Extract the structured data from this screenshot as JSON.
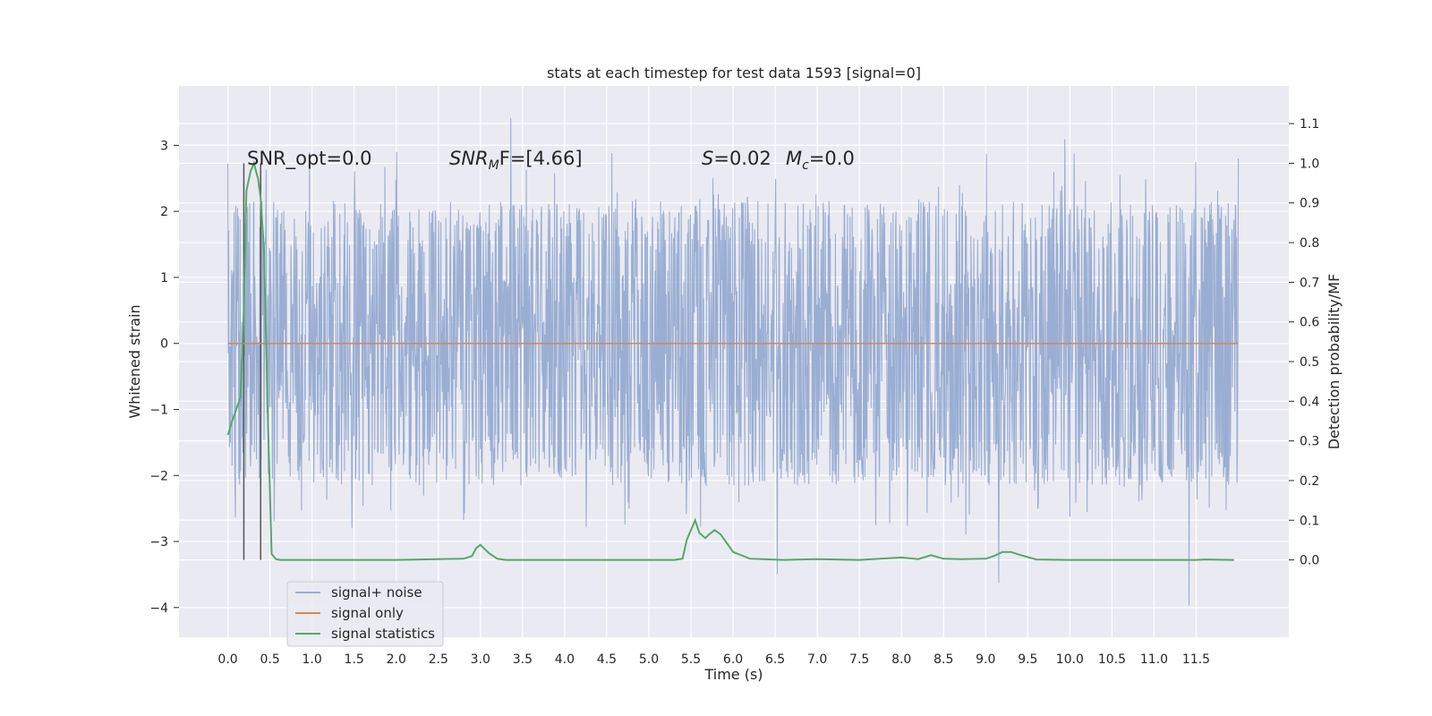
{
  "chart_data": {
    "type": "line",
    "title": "stats at each timestep for test data 1593 [signal=0]",
    "xlabel": "Time (s)",
    "ylabel_left": "Whitened strain",
    "ylabel_right": "Detection probability/MF",
    "xlim": [
      -0.58,
      12.6
    ],
    "ylim_left": [
      -4.45,
      3.9
    ],
    "ylim_right": [
      -0.195,
      1.195
    ],
    "x_ticks": [
      "0.0",
      "0.5",
      "1.0",
      "1.5",
      "2.0",
      "2.5",
      "3.0",
      "3.5",
      "4.0",
      "4.5",
      "5.0",
      "5.5",
      "6.0",
      "6.5",
      "7.0",
      "7.5",
      "8.0",
      "8.5",
      "9.0",
      "9.5",
      "10.0",
      "10.5",
      "11.0",
      "11.5"
    ],
    "y_ticks_left": [
      "3",
      "2",
      "1",
      "0",
      "−1",
      "−2",
      "−3",
      "−4"
    ],
    "y_ticks_right": [
      "1.1",
      "1.0",
      "0.9",
      "0.8",
      "0.7",
      "0.6",
      "0.5",
      "0.4",
      "0.3",
      "0.2",
      "0.1",
      "0.0"
    ],
    "grid": true,
    "legend_position": "lower-left",
    "annotations": {
      "snr_opt": "SNR_opt=0.0",
      "snr_mf_main": "SNR",
      "snr_mf_sub": "M",
      "snr_mf_rest": "F=[4.66]",
      "s_main": "S",
      "s_rest": "=0.02",
      "mc_main": "M",
      "mc_sub": "c",
      "mc_rest": "=0.0"
    },
    "vertical_lines_x": [
      0.19,
      0.39
    ],
    "series": [
      {
        "name": "signal+ noise",
        "color": "#9aaed3",
        "duration": 12.0,
        "typical_range": [
          -1.6,
          1.6
        ],
        "max_value": 3.55,
        "min_value": -4.1
      },
      {
        "name": "signal only",
        "color": "#dd8452",
        "x": [
          0.0,
          12.0
        ],
        "y": [
          0.0,
          0.0
        ]
      },
      {
        "name": "signal statistics",
        "color": "#55a868",
        "axis": "right",
        "x": [
          0.0,
          0.05,
          0.15,
          0.19,
          0.22,
          0.27,
          0.31,
          0.36,
          0.39,
          0.43,
          0.47,
          0.52,
          0.57,
          0.62,
          1.0,
          2.0,
          2.5,
          2.8,
          2.9,
          2.95,
          3.0,
          3.1,
          3.2,
          3.3,
          4.0,
          5.0,
          5.3,
          5.4,
          5.45,
          5.5,
          5.55,
          5.6,
          5.67,
          5.72,
          5.78,
          5.85,
          5.9,
          6.0,
          6.2,
          6.6,
          7.0,
          7.5,
          8.0,
          8.2,
          8.35,
          8.5,
          8.7,
          9.0,
          9.1,
          9.2,
          9.3,
          9.4,
          9.6,
          10.0,
          11.0,
          11.5,
          11.6,
          11.95
        ],
        "y": [
          0.315,
          0.35,
          0.41,
          0.62,
          0.93,
          0.98,
          1.0,
          0.96,
          0.91,
          0.78,
          0.4,
          0.015,
          0.002,
          0.0,
          0.0,
          0.0,
          0.002,
          0.003,
          0.01,
          0.03,
          0.038,
          0.017,
          0.003,
          0.0,
          0.0,
          0.0,
          0.0,
          0.003,
          0.05,
          0.075,
          0.1,
          0.068,
          0.055,
          0.065,
          0.075,
          0.065,
          0.05,
          0.02,
          0.003,
          0.0,
          0.002,
          0.0,
          0.006,
          0.002,
          0.012,
          0.003,
          0.002,
          0.003,
          0.01,
          0.02,
          0.02,
          0.013,
          0.001,
          0.0,
          0.0,
          0.0,
          0.001,
          0.0
        ]
      }
    ]
  }
}
